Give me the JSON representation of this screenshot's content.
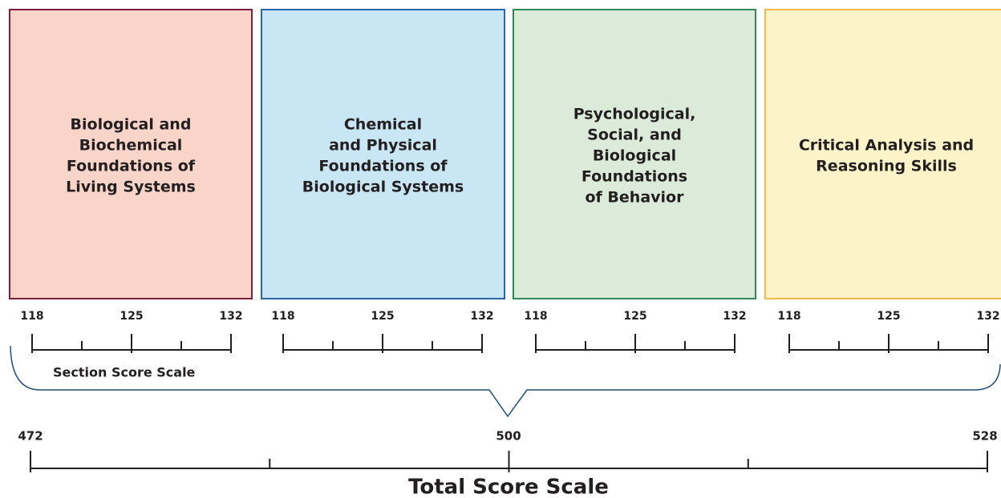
{
  "sections": [
    {
      "lines": [
        "Biological and",
        "Biochemical",
        "Foundations of",
        "Living Systems"
      ],
      "scale": [
        "118",
        "125",
        "132"
      ]
    },
    {
      "lines": [
        "Chemical",
        "and Physical",
        "Foundations of",
        "Biological Systems"
      ],
      "scale": [
        "118",
        "125",
        "132"
      ]
    },
    {
      "lines": [
        "Psychological,",
        "Social, and",
        "Biological",
        "Foundations",
        "of Behavior"
      ],
      "scale": [
        "118",
        "125",
        "132"
      ]
    },
    {
      "lines": [
        "Critical Analysis and",
        "Reasoning Skills"
      ],
      "scale": [
        "118",
        "125",
        "132"
      ]
    }
  ],
  "section_scale_label": "Section Score Scale",
  "total_scale": {
    "ticks": [
      "472",
      "500",
      "528"
    ],
    "label": "Total Score Scale"
  }
}
